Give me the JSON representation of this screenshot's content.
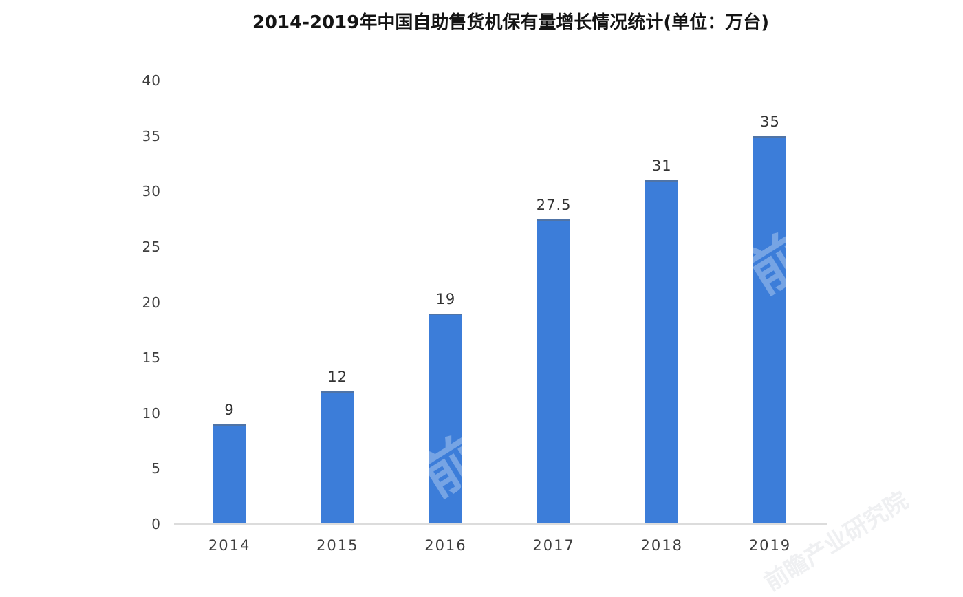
{
  "chart_data": {
    "type": "bar",
    "title": "2014-2019年中国自助售货机保有量增长情况统计(单位：万台)",
    "categories": [
      "2014",
      "2015",
      "2016",
      "2017",
      "2018",
      "2019"
    ],
    "values": [
      9,
      12,
      19,
      27.5,
      31,
      35
    ],
    "value_labels": [
      "9",
      "12",
      "19",
      "27.5",
      "31",
      "35"
    ],
    "unit": "万台",
    "xlabel": "",
    "ylabel": "",
    "ylim": [
      0,
      40
    ],
    "yticks": [
      0,
      5,
      10,
      15,
      20,
      25,
      30,
      35,
      40
    ],
    "grid": false,
    "legend_position": "none",
    "bar_color": "#3C7DD9",
    "axis_line_color": "#DCDCDC",
    "value_label_color": "#333333",
    "tick_label_color": "#3F3F3F",
    "title_color": "#141414",
    "background_color": "#FFFFFF"
  },
  "watermark": {
    "text": "前瞻",
    "text_full": "前瞻产业研究院"
  }
}
